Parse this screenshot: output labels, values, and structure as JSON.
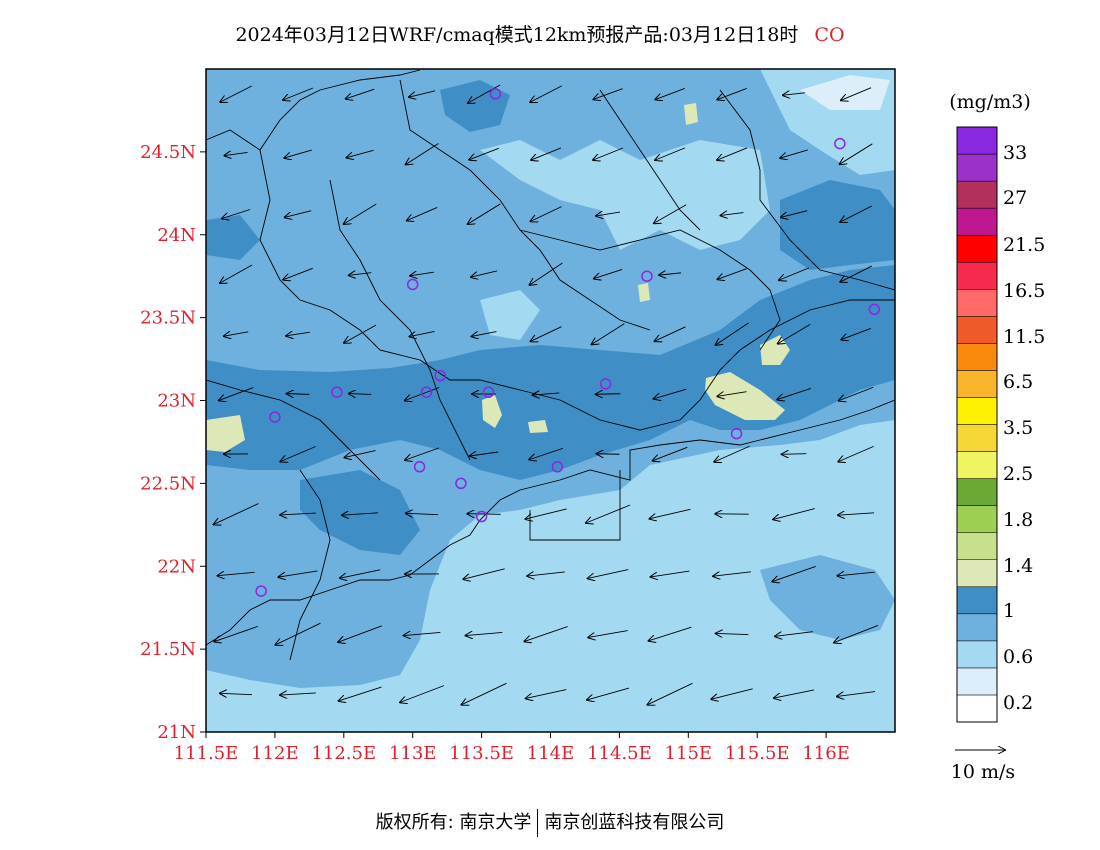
{
  "title": {
    "main": "2024年03月12日WRF/cmaq模式12km预报产品:03月12日18时",
    "species": "CO"
  },
  "axes": {
    "x_ticks": [
      "111.5E",
      "112E",
      "112.5E",
      "113E",
      "113.5E",
      "114E",
      "114.5E",
      "115E",
      "115.5E",
      "116E"
    ],
    "y_ticks": [
      "21N",
      "21.5N",
      "22N",
      "22.5N",
      "23N",
      "23.5N",
      "24N",
      "24.5N"
    ],
    "tick_color": "#e0202c"
  },
  "legend": {
    "unit": "(mg/m3)",
    "labels": [
      "33",
      "27",
      "21.5",
      "16.5",
      "11.5",
      "6.5",
      "3.5",
      "2.5",
      "1.8",
      "1.4",
      "1",
      "0.6",
      "0.2"
    ],
    "colors": [
      "#ffffff",
      "#dbeefa",
      "#a4d9f2",
      "#6eb1de",
      "#3f8fc6",
      "#dde8b9",
      "#c6e08b",
      "#9dcf55",
      "#6ca834",
      "#eef560",
      "#f5d836",
      "#fff200",
      "#f8b52c",
      "#f98a0d",
      "#ef5a28",
      "#ff6a68",
      "#f62a4d",
      "#ff0000",
      "#c0168f",
      "#b1305c",
      "#9b31c9",
      "#8a27e0"
    ]
  },
  "wind_reference": {
    "label": "10 m/s"
  },
  "footer": {
    "copyright": "版权所有: 南京大学",
    "company": "南京创蓝科技有限公司"
  },
  "chart_data": {
    "type": "contour-map",
    "variable": "CO",
    "unit": "mg/m3",
    "lon_range": [
      111.5,
      116.5
    ],
    "lat_range": [
      21.0,
      25.0
    ],
    "levels": [
      0.2,
      0.6,
      1,
      1.4,
      1.8,
      2.5,
      3.5,
      6.5,
      11.5,
      16.5,
      21.5,
      27,
      33
    ],
    "dominant_band_over_land": "0.6-1",
    "sea_band": "0.2-0.6",
    "max_band_observed": "1-1.4",
    "wind_reference_speed_ms": 10,
    "prevailing_wind": "easterly to north-easterly",
    "station_markers": [
      {
        "lon": 113.6,
        "lat": 24.85
      },
      {
        "lon": 116.1,
        "lat": 24.55
      },
      {
        "lon": 113.0,
        "lat": 23.7
      },
      {
        "lon": 114.7,
        "lat": 23.75
      },
      {
        "lon": 116.35,
        "lat": 23.55
      },
      {
        "lon": 112.45,
        "lat": 23.05
      },
      {
        "lon": 113.1,
        "lat": 23.05
      },
      {
        "lon": 113.2,
        "lat": 23.15
      },
      {
        "lon": 113.55,
        "lat": 23.05
      },
      {
        "lon": 114.4,
        "lat": 23.1
      },
      {
        "lon": 112.0,
        "lat": 22.9
      },
      {
        "lon": 115.35,
        "lat": 22.8
      },
      {
        "lon": 113.05,
        "lat": 22.6
      },
      {
        "lon": 113.35,
        "lat": 22.5
      },
      {
        "lon": 114.05,
        "lat": 22.6
      },
      {
        "lon": 113.5,
        "lat": 22.3
      },
      {
        "lon": 111.9,
        "lat": 21.85
      }
    ]
  }
}
